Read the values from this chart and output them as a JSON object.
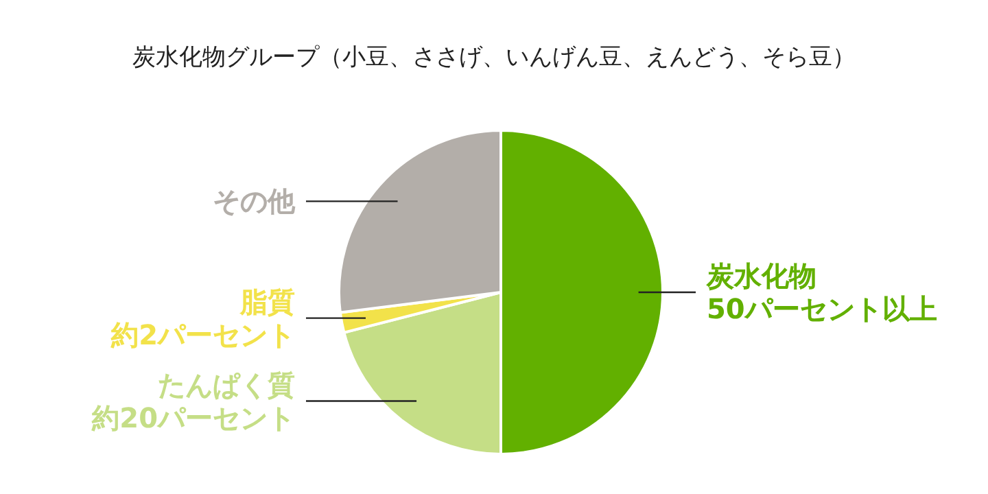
{
  "chart_data": {
    "type": "pie",
    "title": "炭水化物グループ（小豆、ささげ、いんげん豆、えんどう、そら豆）",
    "categories": [
      "炭水化物",
      "たんぱく質",
      "脂質",
      "その他"
    ],
    "values": [
      50,
      21,
      2,
      27
    ],
    "value_labels": [
      "50パーセント以上",
      "約20パーセント",
      "約2パーセント",
      null
    ],
    "colors": [
      "#62b000",
      "#c5de86",
      "#f2e24a",
      "#b3aea9"
    ],
    "legend": false
  }
}
